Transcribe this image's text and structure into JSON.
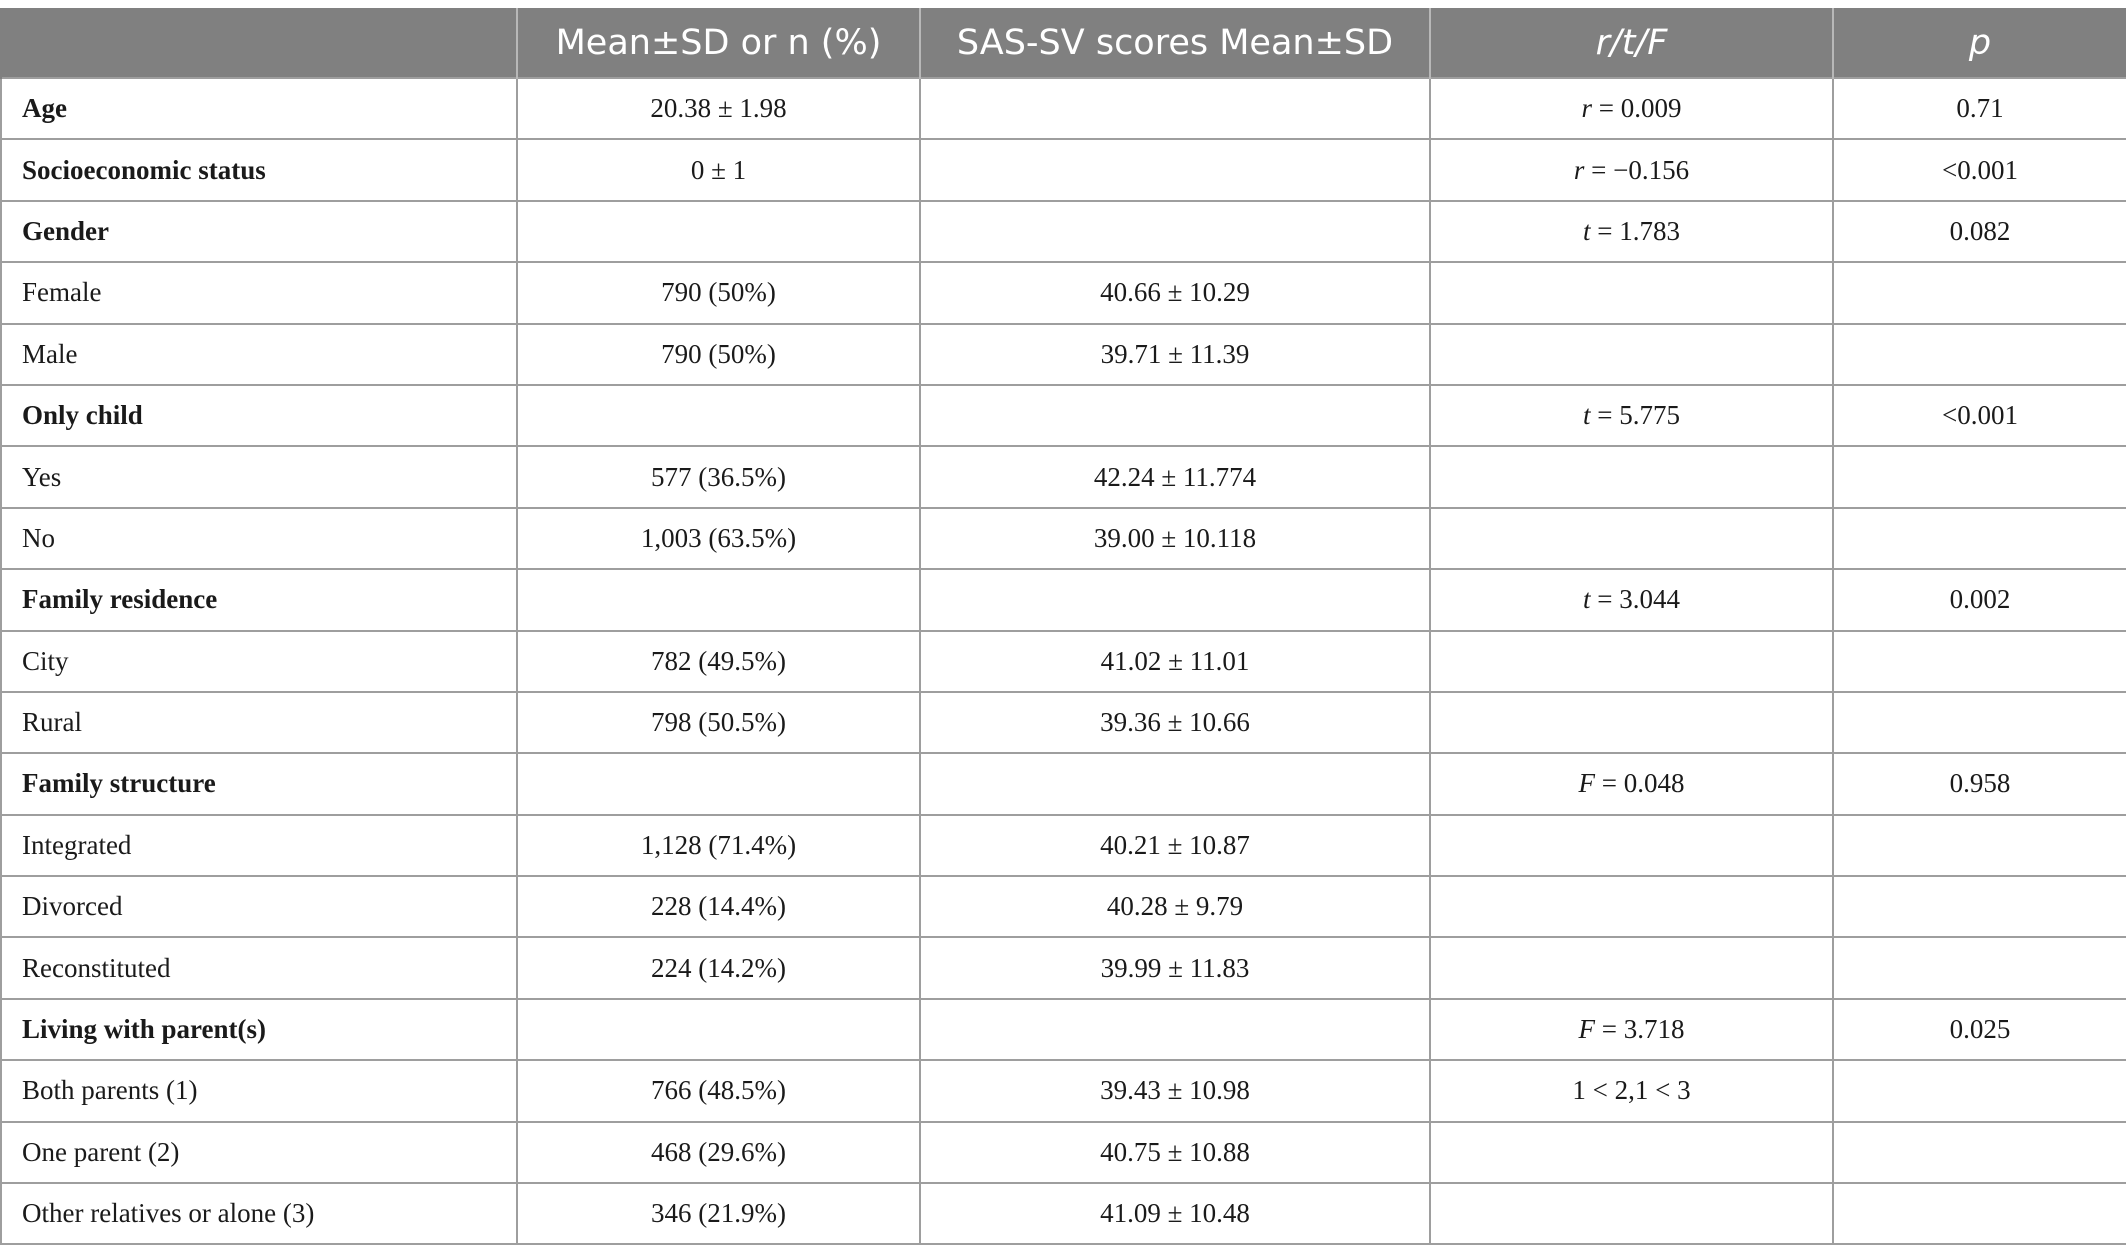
{
  "table": {
    "headers": [
      {
        "text": "",
        "italic": false
      },
      {
        "text": "Mean±SD or n (%)",
        "italic": false
      },
      {
        "text": "SAS-SV scores Mean±SD",
        "italic": false
      },
      {
        "text": "r/t/F",
        "italic": true
      },
      {
        "text": "p",
        "italic": true
      }
    ],
    "rows": [
      {
        "bold": true,
        "label": "Age",
        "mean": "20.38 ± 1.98",
        "sas": "",
        "stat_var": "r",
        "stat_val": " = 0.009",
        "p": "0.71"
      },
      {
        "bold": true,
        "label": "Socioeconomic status",
        "mean": "0 ± 1",
        "sas": "",
        "stat_var": "r",
        "stat_val": " = −0.156",
        "p": "<0.001"
      },
      {
        "bold": true,
        "label": "Gender",
        "mean": "",
        "sas": "",
        "stat_var": "t",
        "stat_val": " = 1.783",
        "p": "0.082"
      },
      {
        "bold": false,
        "label": "Female",
        "mean": "790 (50%)",
        "sas": "40.66 ± 10.29",
        "stat_var": "",
        "stat_val": "",
        "p": ""
      },
      {
        "bold": false,
        "label": "Male",
        "mean": "790 (50%)",
        "sas": "39.71 ± 11.39",
        "stat_var": "",
        "stat_val": "",
        "p": ""
      },
      {
        "bold": true,
        "label": "Only child",
        "mean": "",
        "sas": "",
        "stat_var": "t",
        "stat_val": " = 5.775",
        "p": "<0.001"
      },
      {
        "bold": false,
        "label": "Yes",
        "mean": "577 (36.5%)",
        "sas": "42.24 ± 11.774",
        "stat_var": "",
        "stat_val": "",
        "p": ""
      },
      {
        "bold": false,
        "label": "No",
        "mean": "1,003 (63.5%)",
        "sas": "39.00 ± 10.118",
        "stat_var": "",
        "stat_val": "",
        "p": ""
      },
      {
        "bold": true,
        "label": "Family residence",
        "mean": "",
        "sas": "",
        "stat_var": "t",
        "stat_val": " = 3.044",
        "p": "0.002"
      },
      {
        "bold": false,
        "label": "City",
        "mean": "782 (49.5%)",
        "sas": "41.02 ± 11.01",
        "stat_var": "",
        "stat_val": "",
        "p": ""
      },
      {
        "bold": false,
        "label": "Rural",
        "mean": "798 (50.5%)",
        "sas": "39.36 ± 10.66",
        "stat_var": "",
        "stat_val": "",
        "p": ""
      },
      {
        "bold": true,
        "label": "Family structure",
        "mean": "",
        "sas": "",
        "stat_var": "F",
        "stat_val": " = 0.048",
        "p": "0.958"
      },
      {
        "bold": false,
        "label": "Integrated",
        "mean": "1,128 (71.4%)",
        "sas": "40.21 ± 10.87",
        "stat_var": "",
        "stat_val": "",
        "p": ""
      },
      {
        "bold": false,
        "label": "Divorced",
        "mean": "228 (14.4%)",
        "sas": "40.28 ± 9.79",
        "stat_var": "",
        "stat_val": "",
        "p": ""
      },
      {
        "bold": false,
        "label": "Reconstituted",
        "mean": "224 (14.2%)",
        "sas": "39.99 ± 11.83",
        "stat_var": "",
        "stat_val": "",
        "p": ""
      },
      {
        "bold": true,
        "label": "Living with parent(s)",
        "mean": "",
        "sas": "",
        "stat_var": "F",
        "stat_val": " = 3.718",
        "p": "0.025"
      },
      {
        "bold": false,
        "label": "Both parents (1)",
        "mean": "766 (48.5%)",
        "sas": "39.43 ± 10.98",
        "stat_var": "",
        "stat_val": "1 < 2,1 < 3",
        "p": ""
      },
      {
        "bold": false,
        "label": "One parent (2)",
        "mean": "468 (29.6%)",
        "sas": "40.75 ± 10.88",
        "stat_var": "",
        "stat_val": "",
        "p": ""
      },
      {
        "bold": false,
        "label": "Other relatives or alone (3)",
        "mean": "346 (21.9%)",
        "sas": "41.09 ± 10.48",
        "stat_var": "",
        "stat_val": "",
        "p": ""
      }
    ]
  },
  "colors": {
    "header_bg": "#808080",
    "header_text": "#ffffff",
    "grid": "#9e9e9e"
  }
}
